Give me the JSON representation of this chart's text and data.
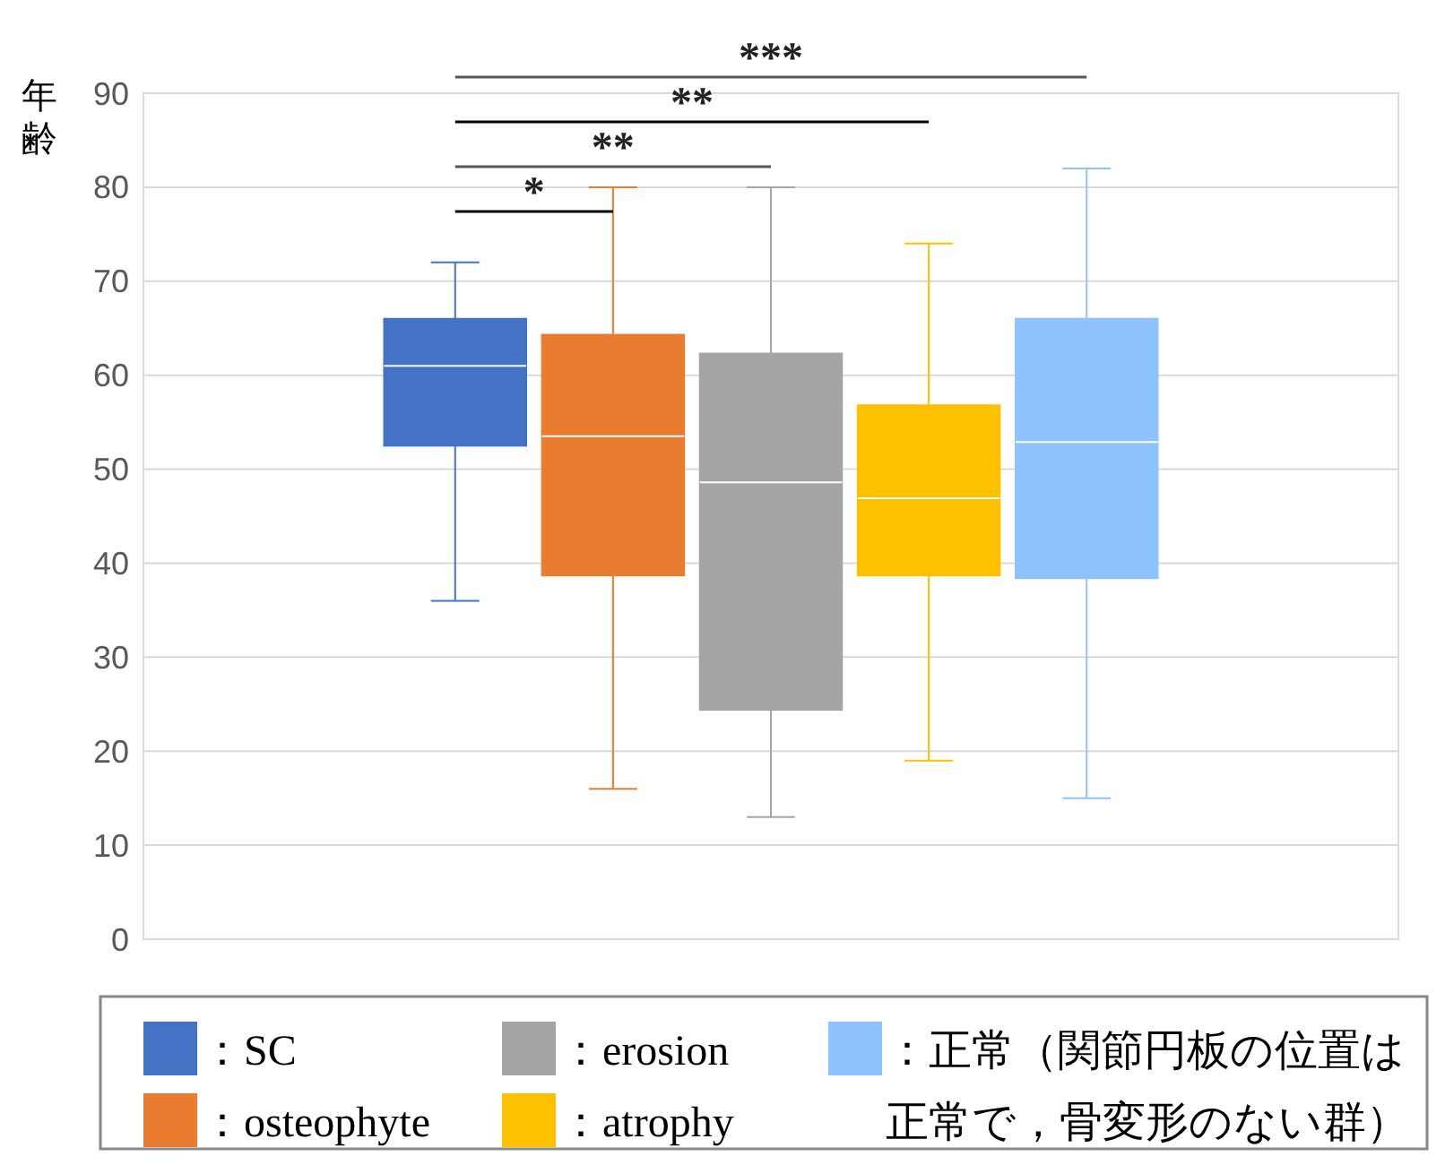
{
  "chart_data": {
    "type": "box",
    "ylabel": "年齢",
    "categories": [
      null
    ],
    "ylim": [
      0,
      90
    ],
    "yticks": [
      0,
      10,
      20,
      30,
      40,
      50,
      60,
      70,
      80,
      90
    ],
    "grid": "y",
    "tick_labels": "y",
    "legend": "bottom",
    "series": [
      {
        "name": "：SC",
        "color": "#4472c4",
        "boxes": [
          {
            "low": 36,
            "q1": 52.5,
            "median": 61,
            "q3": 66,
            "high": 72
          }
        ]
      },
      {
        "name": "：osteophyte",
        "color": "#e97c30",
        "boxes": [
          {
            "low": 16,
            "q1": 38.7,
            "median": 53.5,
            "q3": 64.3,
            "high": 80
          }
        ]
      },
      {
        "name": "：erosion",
        "color": "#a5a5a5",
        "boxes": [
          {
            "low": 13,
            "q1": 24.4,
            "median": 48.6,
            "q3": 62.3,
            "high": 80
          }
        ]
      },
      {
        "name": "：atrophy",
        "color": "#ffc000",
        "boxes": [
          {
            "low": 19,
            "q1": 38.7,
            "median": 46.9,
            "q3": 56.8,
            "high": 74
          }
        ]
      },
      {
        "name": "：正常（関節円板の位置は正常で，骨変形のない群）",
        "color": "#8fc3ff",
        "boxes": [
          {
            "low": 15,
            "q1": 38.4,
            "median": 52.9,
            "q3": 66,
            "high": 82
          }
        ]
      }
    ],
    "annotations": [
      "*",
      "**",
      "**",
      "***"
    ]
  }
}
